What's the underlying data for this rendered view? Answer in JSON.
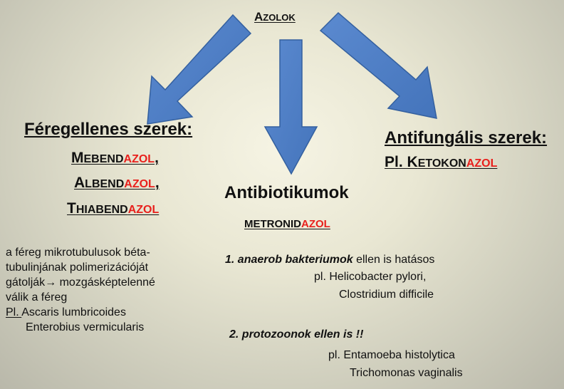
{
  "title": {
    "first": "A",
    "rest": "ZOLOK"
  },
  "left": {
    "heading": "Féregellenes szerek:",
    "drugs": [
      {
        "first": "M",
        "rest": "EBEND",
        "suffix": "AZOL",
        "after": ","
      },
      {
        "first": "A",
        "rest": "LBEND",
        "suffix": "AZOL",
        "after": ","
      },
      {
        "first": "T",
        "rest": "HIABEND",
        "suffix": "AZOL",
        "after": ""
      }
    ],
    "description": [
      "a féreg mikrotubulusok béta-",
      "tubulinjának polimerizációját",
      "gátolják",
      "→",
      " mozgásképtelenné",
      "válik a féreg"
    ],
    "examples_label": "Pl. ",
    "examples": [
      "Ascaris lumbricoides",
      "Enterobius vermicularis"
    ]
  },
  "middle": {
    "heading": "Antibiotikumok",
    "drug": {
      "base": "METRONID",
      "suffix": "AZOL"
    },
    "point1": {
      "bold": "1. anaerob bakteriumok",
      "rest": " ellen is hatásos"
    },
    "point1_examples": [
      "pl. Helicobacter pylori,",
      "Clostridium difficile"
    ],
    "point2": "2. protozoonok ellen is !!",
    "point2_examples": [
      "pl. Entamoeba histolytica",
      "Trichomonas vaginalis"
    ]
  },
  "right": {
    "heading": "Antifungális szerek:",
    "drug": {
      "prefix": "Pl. ",
      "first": "K",
      "rest": "ETOKON",
      "suffix": "AZOL"
    }
  },
  "colors": {
    "arrow": "#4f7fc4",
    "arrow_stroke": "#3a64a8",
    "accent": "#e8201c"
  }
}
